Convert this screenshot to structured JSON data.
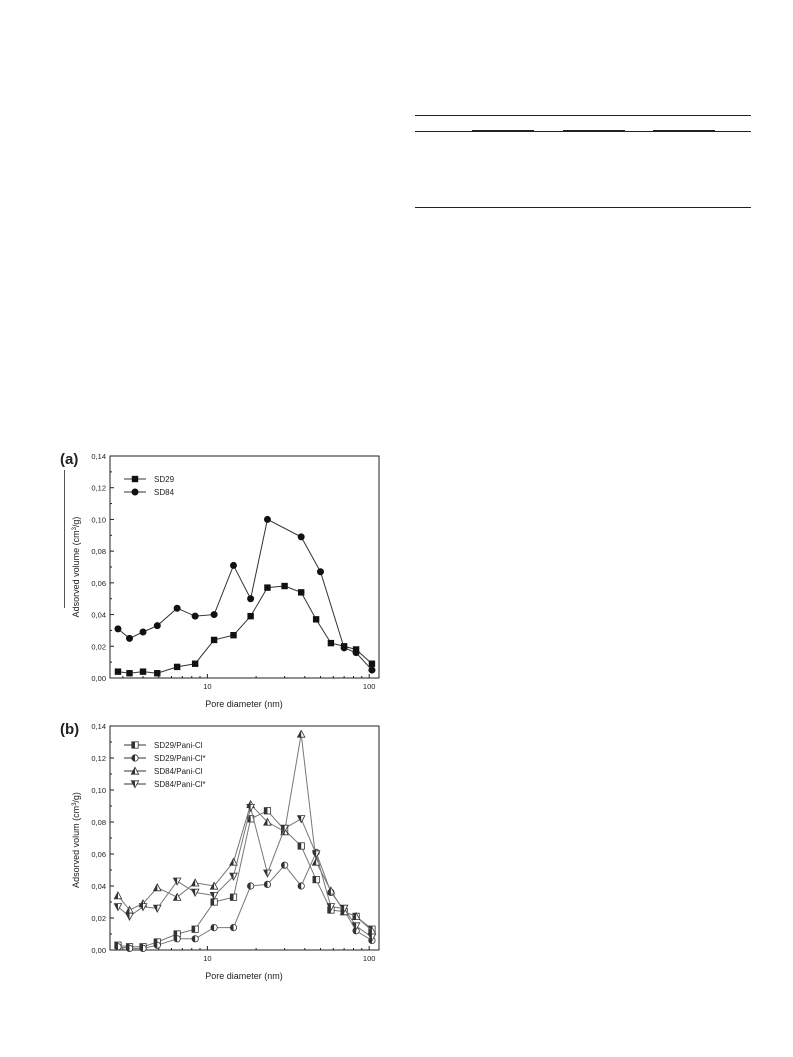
{
  "chart_data": [
    {
      "type": "line",
      "panel_label": "(a)",
      "xlabel": "Pore diameter (nm)",
      "ylabel": "Adsorved  volume (cm3/g)",
      "ylabel_main": "Adsorved  volume (cm",
      "ylabel_sup": "3",
      "ylabel_end": "/g)",
      "xscale": "log",
      "xlim": [
        2.5,
        115
      ],
      "xticks": [
        {
          "value": 10,
          "label": "10"
        },
        {
          "value": 100,
          "label": "100"
        }
      ],
      "ylim": [
        0,
        0.14
      ],
      "yticks": [
        {
          "value": 0,
          "label": "0,00"
        },
        {
          "value": 0.02,
          "label": "0,02"
        },
        {
          "value": 0.04,
          "label": "0,04"
        },
        {
          "value": 0.06,
          "label": "0,06"
        },
        {
          "value": 0.08,
          "label": "0,08"
        },
        {
          "value": 0.1,
          "label": "0,10"
        },
        {
          "value": 0.12,
          "label": "0,12"
        },
        {
          "value": 0.14,
          "label": "0,14"
        }
      ],
      "legend_position": "top-left",
      "series": [
        {
          "name": "SD29",
          "marker": "square",
          "x": [
            2.8,
            3.3,
            4.0,
            4.9,
            6.5,
            8.4,
            11.0,
            14.5,
            18.5,
            23.5,
            30.0,
            38.0,
            47.0,
            58.0,
            70.0,
            83.0,
            104.0
          ],
          "y": [
            0.004,
            0.003,
            0.004,
            0.003,
            0.007,
            0.009,
            0.024,
            0.027,
            0.039,
            0.057,
            0.058,
            0.054,
            0.037,
            0.022,
            0.02,
            0.018,
            0.009
          ]
        },
        {
          "name": "SD84",
          "marker": "circle",
          "x": [
            2.8,
            3.3,
            4.0,
            4.9,
            6.5,
            8.4,
            11.0,
            14.5,
            18.5,
            23.5,
            38.0,
            50.0,
            70.0,
            83.0,
            104.0
          ],
          "y": [
            0.031,
            0.025,
            0.029,
            0.033,
            0.044,
            0.039,
            0.04,
            0.071,
            0.05,
            0.1,
            0.089,
            0.067,
            0.019,
            0.016,
            0.005
          ]
        }
      ]
    },
    {
      "type": "line",
      "panel_label": "(b)",
      "xlabel": "Pore diameter (nm)",
      "ylabel": "Adsorved volum (cm3/g)",
      "ylabel_main": "Adsorved volum (cm",
      "ylabel_sup": "3",
      "ylabel_end": "/g)",
      "xscale": "log",
      "xlim": [
        2.5,
        115
      ],
      "xticks": [
        {
          "value": 10,
          "label": "10"
        },
        {
          "value": 100,
          "label": "100"
        }
      ],
      "ylim": [
        0,
        0.14
      ],
      "yticks": [
        {
          "value": 0,
          "label": "0,00"
        },
        {
          "value": 0.02,
          "label": "0,02"
        },
        {
          "value": 0.04,
          "label": "0,04"
        },
        {
          "value": 0.06,
          "label": "0,06"
        },
        {
          "value": 0.08,
          "label": "0,08"
        },
        {
          "value": 0.1,
          "label": "0,10"
        },
        {
          "value": 0.12,
          "label": "0,12"
        },
        {
          "value": 0.14,
          "label": "0,14"
        }
      ],
      "legend_position": "top-left",
      "series": [
        {
          "name": "SD29/Pani-Cl",
          "marker": "half-square",
          "x": [
            2.8,
            3.3,
            4.0,
            4.9,
            6.5,
            8.4,
            11.0,
            14.5,
            18.5,
            23.5,
            30.0,
            38.0,
            47.0,
            58.0,
            70.0,
            83.0,
            104.0
          ],
          "y": [
            0.003,
            0.002,
            0.002,
            0.005,
            0.01,
            0.013,
            0.03,
            0.033,
            0.082,
            0.087,
            0.075,
            0.065,
            0.044,
            0.025,
            0.024,
            0.021,
            0.013
          ]
        },
        {
          "name": "SD29/Pani-Cl*",
          "marker": "half-circle",
          "x": [
            2.8,
            3.3,
            4.0,
            4.9,
            6.5,
            8.4,
            11.0,
            14.5,
            18.5,
            23.5,
            30.0,
            38.0,
            47.0,
            58.0,
            70.0,
            83.0,
            104.0
          ],
          "y": [
            0.002,
            0.001,
            0.001,
            0.003,
            0.007,
            0.007,
            0.014,
            0.014,
            0.04,
            0.041,
            0.053,
            0.04,
            0.061,
            0.036,
            0.025,
            0.012,
            0.006
          ]
        },
        {
          "name": "SD84/Pani-Cl",
          "marker": "triangle-up",
          "x": [
            2.8,
            3.3,
            4.0,
            4.9,
            6.5,
            8.4,
            11.0,
            14.5,
            18.5,
            23.5,
            30.0,
            38.0,
            47.0,
            58.0,
            70.0,
            83.0,
            104.0
          ],
          "y": [
            0.034,
            0.025,
            0.029,
            0.039,
            0.033,
            0.042,
            0.04,
            0.055,
            0.091,
            0.08,
            0.074,
            0.135,
            0.055,
            0.037,
            0.024,
            0.021,
            0.012
          ]
        },
        {
          "name": "SD84/Pani-Cl*",
          "marker": "triangle-down",
          "x": [
            2.8,
            3.3,
            4.0,
            4.9,
            6.5,
            8.4,
            11.0,
            14.5,
            18.5,
            23.5,
            30.0,
            38.0,
            47.0,
            58.0,
            70.0,
            83.0,
            104.0
          ],
          "y": [
            0.027,
            0.021,
            0.027,
            0.026,
            0.043,
            0.036,
            0.034,
            0.046,
            0.089,
            0.048,
            0.076,
            0.082,
            0.06,
            0.027,
            0.026,
            0.015,
            0.008
          ]
        }
      ]
    }
  ]
}
